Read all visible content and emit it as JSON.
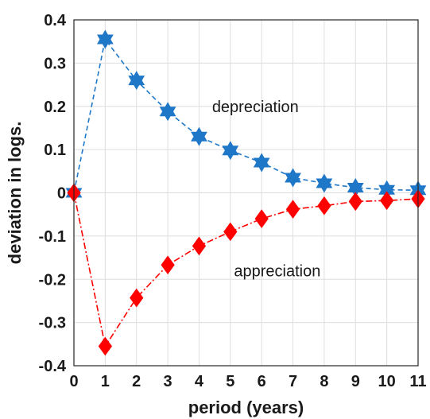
{
  "chart_data": {
    "type": "line",
    "title": "",
    "xlabel": "period (years)",
    "ylabel": "deviation in logs.",
    "xlim": [
      0,
      11
    ],
    "ylim": [
      -0.4,
      0.4
    ],
    "x_ticks": [
      0,
      1,
      2,
      3,
      4,
      5,
      6,
      7,
      8,
      9,
      10,
      11
    ],
    "y_ticks": [
      -0.4,
      -0.3,
      -0.2,
      -0.1,
      0,
      0.1,
      0.2,
      0.3,
      0.4
    ],
    "y_tick_labels": [
      "-0.4",
      "-0.3",
      "-0.2",
      "-0.1",
      "0",
      "0.1",
      "0.2",
      "0.3",
      "0.4"
    ],
    "grid": true,
    "x": [
      0,
      1,
      2,
      3,
      4,
      5,
      6,
      7,
      8,
      9,
      10,
      11
    ],
    "series": [
      {
        "values": [
          0,
          0.355,
          0.26,
          0.188,
          0.13,
          0.098,
          0.07,
          0.035,
          0.022,
          0.012,
          0.007,
          0.006
        ],
        "color": "#1f77c8",
        "line_style": "dashed",
        "marker": "hexagram"
      },
      {
        "values": [
          0,
          -0.355,
          -0.243,
          -0.167,
          -0.123,
          -0.09,
          -0.06,
          -0.038,
          -0.03,
          -0.02,
          -0.018,
          -0.014
        ],
        "color": "#ff0000",
        "line_style": "dash-dot",
        "marker": "diamond"
      }
    ],
    "annotations": [
      {
        "text": "depreciation",
        "x": 5.8,
        "y": 0.2
      },
      {
        "text": "appreciation",
        "x": 6.5,
        "y": -0.18
      }
    ]
  }
}
